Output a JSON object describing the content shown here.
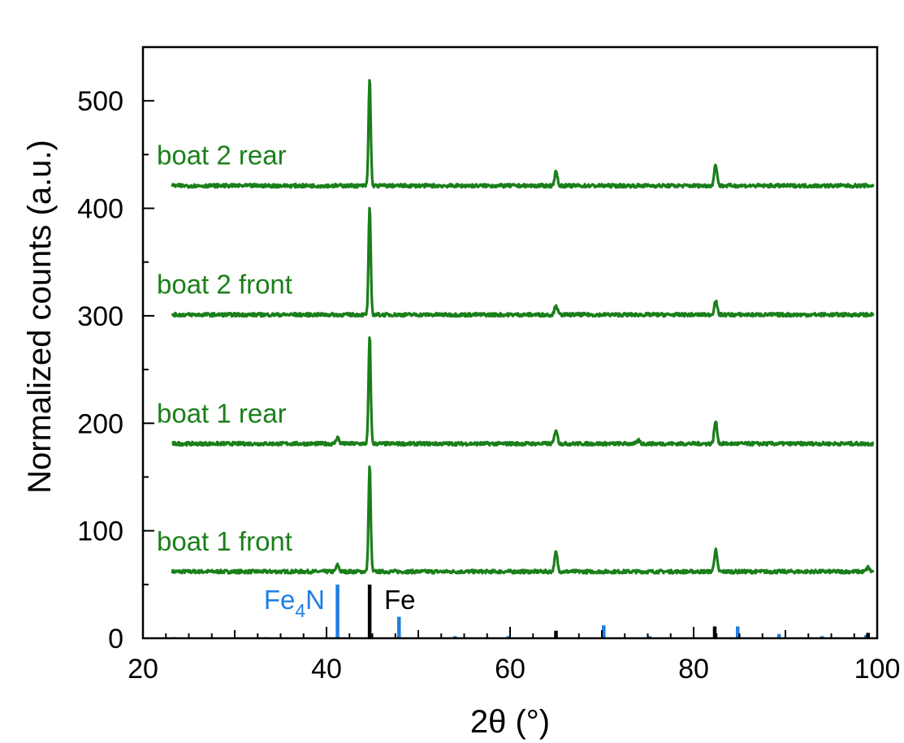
{
  "chart_data": {
    "type": "line",
    "xlabel": "2θ (°)",
    "ylabel": "Normalized counts (a.u.)",
    "xlim": [
      20,
      100
    ],
    "ylim": [
      0,
      550
    ],
    "x_ticks": [
      "20",
      "40",
      "60",
      "80",
      "100"
    ],
    "y_ticks": [
      "0",
      "100",
      "200",
      "300",
      "400",
      "500"
    ],
    "colors": {
      "series": "#1a7f1a",
      "fe4n": "#1f7fe0",
      "fe": "#000000"
    },
    "series": [
      {
        "name": "boat 1 front",
        "baseline": 62,
        "peaks": [
          {
            "x": 41.2,
            "y": 68
          },
          {
            "x": 44.7,
            "y": 160
          },
          {
            "x": 65.0,
            "y": 80
          },
          {
            "x": 82.4,
            "y": 82
          },
          {
            "x": 99.0,
            "y": 66
          }
        ]
      },
      {
        "name": "boat 1 rear",
        "baseline": 181,
        "peaks": [
          {
            "x": 41.2,
            "y": 187
          },
          {
            "x": 44.7,
            "y": 280
          },
          {
            "x": 65.0,
            "y": 194
          },
          {
            "x": 82.4,
            "y": 202
          },
          {
            "x": 74.0,
            "y": 184
          }
        ]
      },
      {
        "name": "boat 2 front",
        "baseline": 301,
        "peaks": [
          {
            "x": 44.7,
            "y": 400
          },
          {
            "x": 65.0,
            "y": 310
          },
          {
            "x": 82.4,
            "y": 314
          }
        ]
      },
      {
        "name": "boat 2 rear",
        "baseline": 421,
        "peaks": [
          {
            "x": 44.7,
            "y": 520
          },
          {
            "x": 65.0,
            "y": 434
          },
          {
            "x": 82.4,
            "y": 441
          }
        ]
      }
    ],
    "reference_patterns": [
      {
        "name_main": "Fe",
        "name_sub": "4",
        "name_tail": "N",
        "lines": [
          {
            "x": 23.5,
            "y": 1
          },
          {
            "x": 33.3,
            "y": 1
          },
          {
            "x": 41.2,
            "y": 50
          },
          {
            "x": 47.9,
            "y": 20
          },
          {
            "x": 54.0,
            "y": 2
          },
          {
            "x": 59.8,
            "y": 2
          },
          {
            "x": 70.2,
            "y": 12
          },
          {
            "x": 75.2,
            "y": 2
          },
          {
            "x": 84.8,
            "y": 11
          },
          {
            "x": 89.3,
            "y": 4
          },
          {
            "x": 94.0,
            "y": 2
          },
          {
            "x": 98.8,
            "y": 3
          }
        ]
      },
      {
        "name_main": "Fe",
        "name_sub": "",
        "name_tail": "",
        "lines": [
          {
            "x": 44.7,
            "y": 50
          },
          {
            "x": 65.0,
            "y": 7
          },
          {
            "x": 82.3,
            "y": 11
          },
          {
            "x": 99.0,
            "y": 5
          }
        ]
      }
    ]
  }
}
